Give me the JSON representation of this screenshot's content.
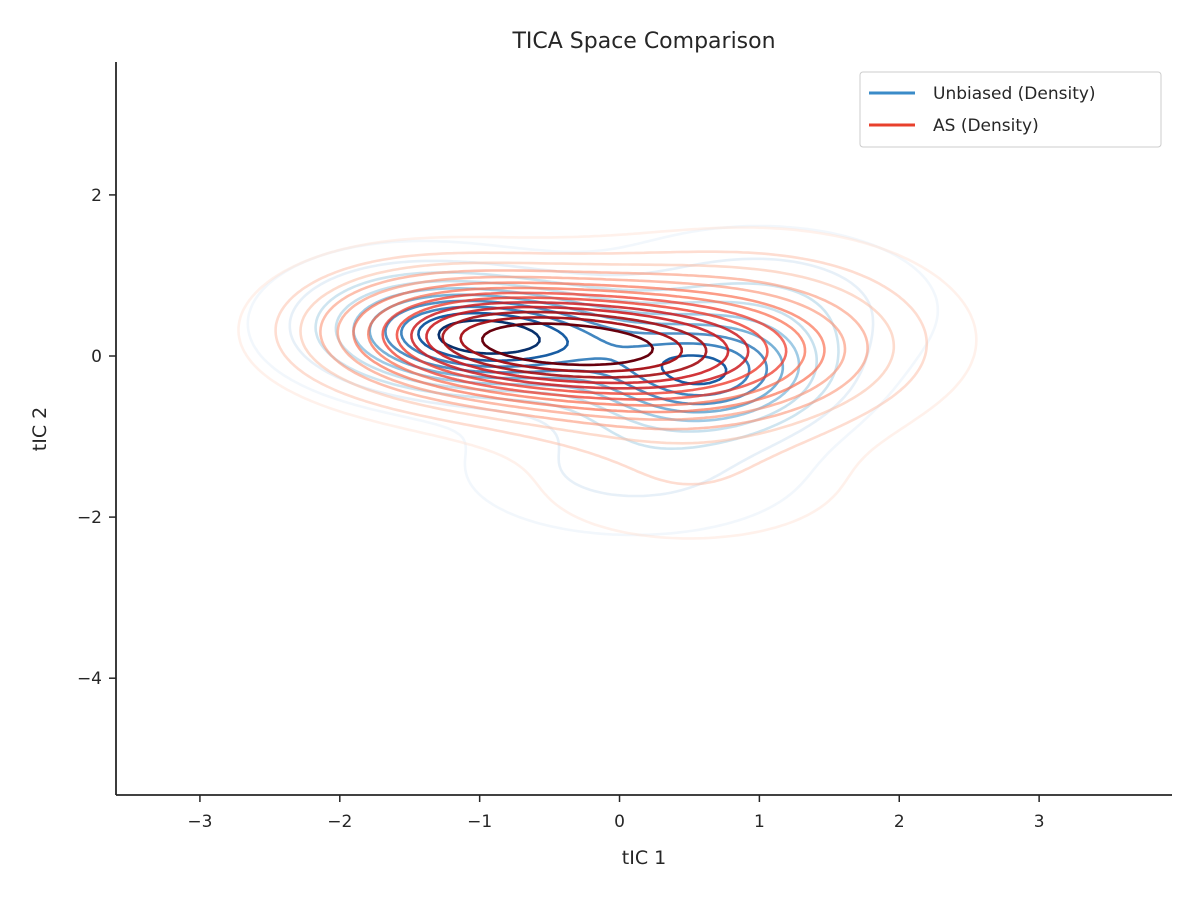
{
  "chart_data": {
    "type": "contour",
    "title": "TICA Space Comparison",
    "xlabel": "tIC 1",
    "ylabel": "tIC 2",
    "xlim": [
      -3.6,
      3.95
    ],
    "ylim": [
      -5.45,
      3.65
    ],
    "xticks": [
      -3,
      -2,
      -1,
      0,
      1,
      2,
      3
    ],
    "yticks": [
      -4,
      -2,
      0,
      2
    ],
    "xtick_labels": [
      "−3",
      "−2",
      "−1",
      "0",
      "1",
      "2",
      "3"
    ],
    "ytick_labels": [
      "−4",
      "−2",
      "0",
      "2"
    ],
    "grid": false,
    "legend_position": "upper right",
    "series": [
      {
        "name": "Unbiased (Density)",
        "color": "#3a8bc8",
        "colormap": "Blues",
        "components": [
          {
            "x": -0.85,
            "y": 0.2,
            "sx": 0.65,
            "sy": 0.42,
            "w": 1.0
          },
          {
            "x": 0.6,
            "y": -0.25,
            "sx": 0.55,
            "sy": 0.45,
            "w": 0.85
          },
          {
            "x": 1.0,
            "y": 0.6,
            "sx": 0.75,
            "sy": 0.6,
            "w": 0.3
          },
          {
            "x": 0.1,
            "y": -1.4,
            "sx": 0.8,
            "sy": 0.55,
            "w": 0.22
          },
          {
            "x": -1.5,
            "y": 0.5,
            "sx": 0.6,
            "sy": 0.5,
            "w": 0.35
          }
        ],
        "levels": 10
      },
      {
        "name": "AS (Density)",
        "color": "#e8402c",
        "colormap": "Reds",
        "components": [
          {
            "x": -0.75,
            "y": 0.2,
            "sx": 0.8,
            "sy": 0.5,
            "w": 1.0
          },
          {
            "x": 0.4,
            "y": -0.05,
            "sx": 0.85,
            "sy": 0.55,
            "w": 0.7
          },
          {
            "x": 1.0,
            "y": 0.4,
            "sx": 0.9,
            "sy": 0.75,
            "w": 0.28
          },
          {
            "x": 0.5,
            "y": -1.6,
            "sx": 0.9,
            "sy": 0.6,
            "w": 0.16
          },
          {
            "x": -1.5,
            "y": 0.5,
            "sx": 0.65,
            "sy": 0.55,
            "w": 0.25
          }
        ],
        "levels": 14
      }
    ]
  }
}
